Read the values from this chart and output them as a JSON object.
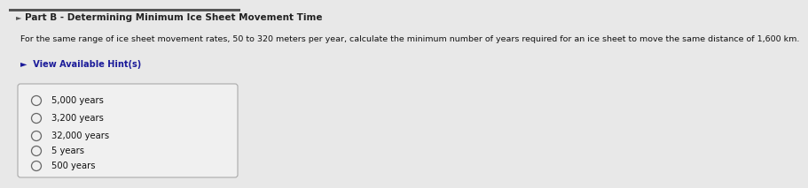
{
  "title": "Part B - Determining Minimum Ice Sheet Movement Time",
  "title_prefix": "● ",
  "body_text": "For the same range of ice sheet movement rates, 50 to 320 meters per year, calculate the minimum number of years required for an ice sheet to move the same distance of 1,600 km.",
  "hint_text": "►  View Available Hint(s)",
  "choices": [
    "5,000 years",
    "3,200 years",
    "32,000 years",
    "5 years",
    "500 years"
  ],
  "bg_color": "#e8e8e8",
  "box_bg": "#f0f0f0",
  "box_border": "#aaaaaa",
  "title_color": "#222222",
  "body_color": "#111111",
  "hint_color": "#1a1a99",
  "choice_color": "#111111",
  "circle_edge_color": "#666666",
  "top_bar_color": "#555555",
  "title_fontsize": 7.5,
  "body_fontsize": 6.8,
  "hint_fontsize": 7.0,
  "choice_fontsize": 7.2
}
